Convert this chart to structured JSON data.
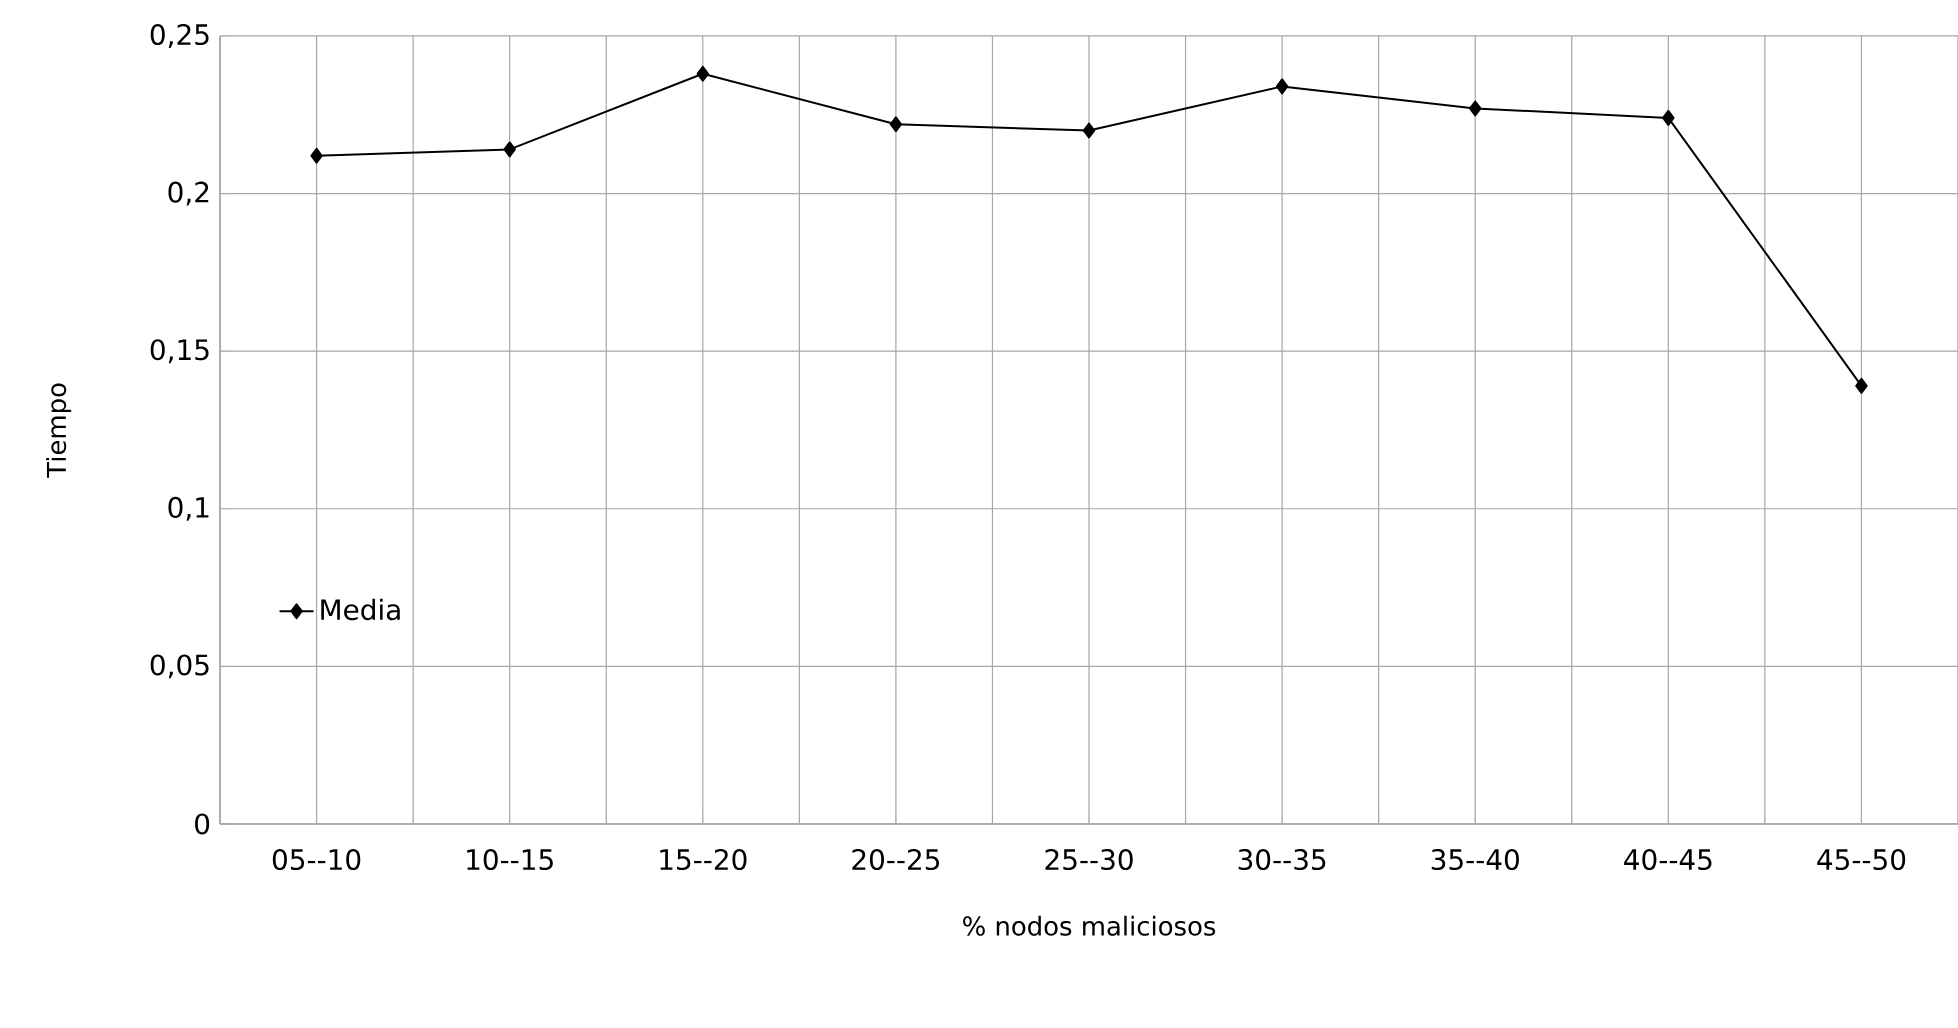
{
  "chart_data": {
    "type": "line",
    "xlabel": "% nodos maliciosos",
    "ylabel": "Tiempo",
    "categories": [
      "05--10",
      "10--15",
      "15--20",
      "20--25",
      "25--30",
      "30--35",
      "35--40",
      "40--45",
      "45--50"
    ],
    "series": [
      {
        "name": "Media",
        "color": "#000000",
        "values": [
          0.212,
          0.214,
          0.238,
          0.222,
          0.22,
          0.234,
          0.227,
          0.224,
          0.139
        ]
      }
    ],
    "ylim": [
      0,
      0.25
    ],
    "yticks": [
      {
        "value": 0,
        "label": "0"
      },
      {
        "value": 0.05,
        "label": "0,05"
      },
      {
        "value": 0.1,
        "label": "0,1"
      },
      {
        "value": 0.15,
        "label": "0,15"
      },
      {
        "value": 0.2,
        "label": "0,2"
      },
      {
        "value": 0.25,
        "label": "0,25"
      }
    ],
    "grid": true,
    "legend": "left",
    "marker": "diamond",
    "line_style": "solid"
  }
}
